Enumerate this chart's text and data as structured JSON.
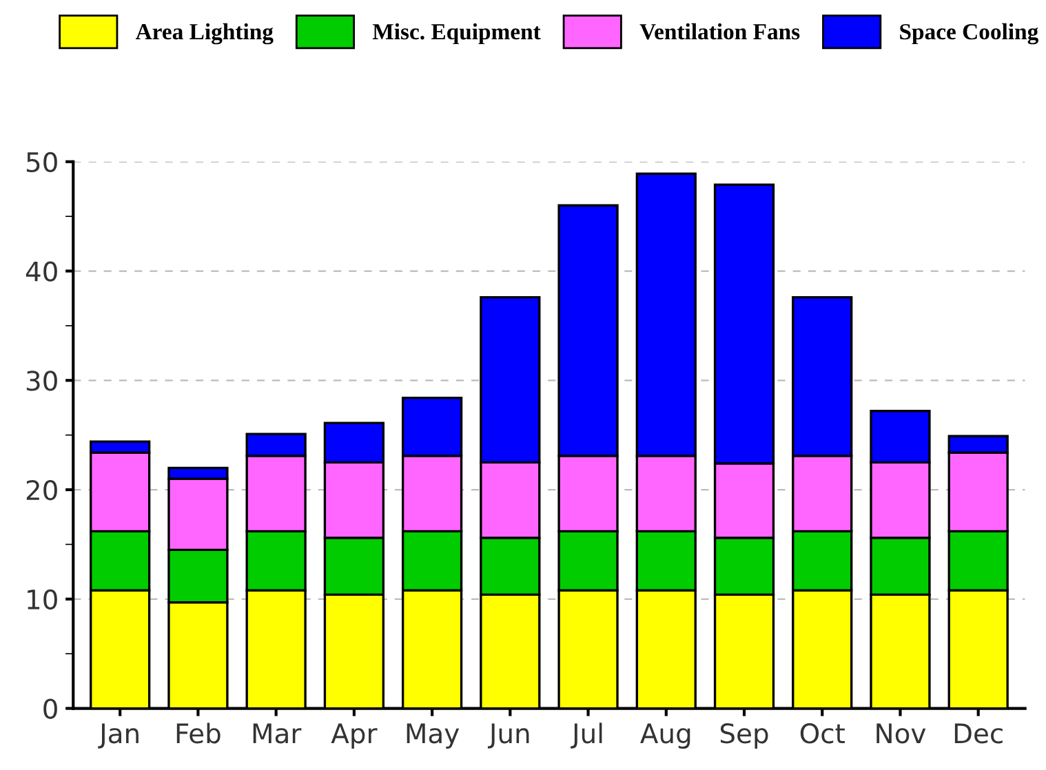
{
  "chart_data": {
    "type": "bar",
    "stacked": true,
    "categories": [
      "Jan",
      "Feb",
      "Mar",
      "Apr",
      "May",
      "Jun",
      "Jul",
      "Aug",
      "Sep",
      "Oct",
      "Nov",
      "Dec"
    ],
    "series": [
      {
        "name": "Area Lighting",
        "color": "#ffff00",
        "values": [
          10.8,
          9.7,
          10.8,
          10.4,
          10.8,
          10.4,
          10.8,
          10.8,
          10.4,
          10.8,
          10.4,
          10.8
        ]
      },
      {
        "name": "Misc. Equipment",
        "color": "#00cc00",
        "values": [
          5.4,
          4.8,
          5.4,
          5.2,
          5.4,
          5.2,
          5.4,
          5.4,
          5.2,
          5.4,
          5.2,
          5.4
        ]
      },
      {
        "name": "Ventilation Fans",
        "color": "#ff66ff",
        "values": [
          7.2,
          6.5,
          6.9,
          6.9,
          6.9,
          6.9,
          6.9,
          6.9,
          6.8,
          6.9,
          6.9,
          7.2
        ]
      },
      {
        "name": "Space Cooling",
        "color": "#0000ff",
        "values": [
          1.0,
          1.0,
          2.0,
          3.6,
          5.3,
          15.1,
          22.9,
          25.8,
          25.5,
          14.5,
          4.7,
          1.5
        ]
      }
    ],
    "ylim": [
      0,
      50
    ],
    "yticks": [
      0,
      10,
      20,
      30,
      40,
      50
    ],
    "grid": "y",
    "legend": "top"
  }
}
